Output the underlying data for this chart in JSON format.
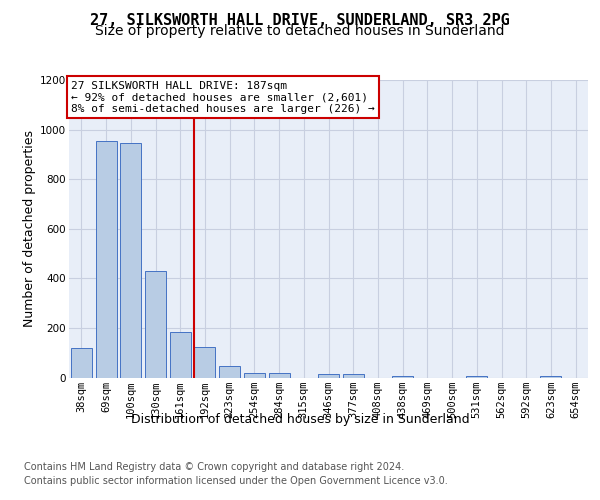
{
  "title": "27, SILKSWORTH HALL DRIVE, SUNDERLAND, SR3 2PG",
  "subtitle": "Size of property relative to detached houses in Sunderland",
  "xlabel": "Distribution of detached houses by size in Sunderland",
  "ylabel": "Number of detached properties",
  "categories": [
    "38sqm",
    "69sqm",
    "100sqm",
    "130sqm",
    "161sqm",
    "192sqm",
    "223sqm",
    "254sqm",
    "284sqm",
    "315sqm",
    "346sqm",
    "377sqm",
    "408sqm",
    "438sqm",
    "469sqm",
    "500sqm",
    "531sqm",
    "562sqm",
    "592sqm",
    "623sqm",
    "654sqm"
  ],
  "values": [
    120,
    955,
    945,
    430,
    185,
    125,
    45,
    20,
    20,
    0,
    15,
    15,
    0,
    8,
    0,
    0,
    8,
    0,
    0,
    8,
    0
  ],
  "bar_color": "#b8cce4",
  "bar_edge_color": "#4472c4",
  "vline_color": "#cc0000",
  "vline_index": 5,
  "annotation_line1": "27 SILKSWORTH HALL DRIVE: 187sqm",
  "annotation_line2": "← 92% of detached houses are smaller (2,601)",
  "annotation_line3": "8% of semi-detached houses are larger (226) →",
  "annotation_box_edgecolor": "#cc0000",
  "ylim": [
    0,
    1200
  ],
  "yticks": [
    0,
    200,
    400,
    600,
    800,
    1000,
    1200
  ],
  "grid_color": "#c8cfe0",
  "bg_color": "#e8eef8",
  "footer_line1": "Contains HM Land Registry data © Crown copyright and database right 2024.",
  "footer_line2": "Contains public sector information licensed under the Open Government Licence v3.0.",
  "title_fontsize": 11,
  "subtitle_fontsize": 10,
  "axis_label_fontsize": 9,
  "tick_fontsize": 7.5,
  "annotation_fontsize": 8,
  "footer_fontsize": 7
}
